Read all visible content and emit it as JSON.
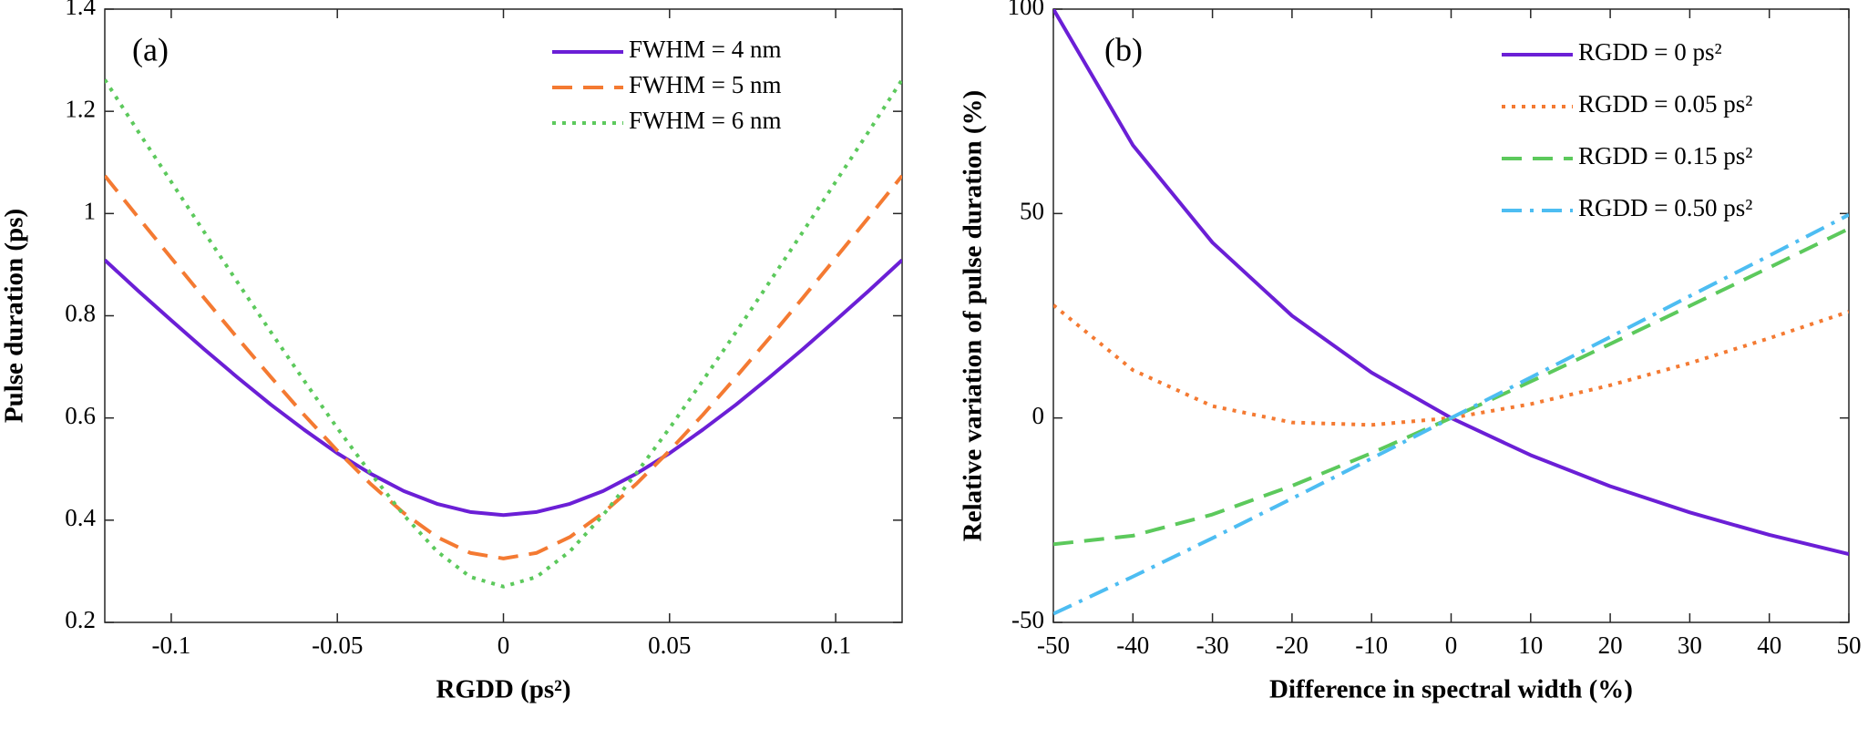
{
  "chart_data": [
    {
      "type": "line",
      "panel_label": "(a)",
      "x_label": "RGDD (ps²)",
      "y_label": "Pulse duration (ps)",
      "x": [
        -0.12,
        -0.11,
        -0.1,
        -0.09,
        -0.08,
        -0.07,
        -0.06,
        -0.05,
        -0.04,
        -0.03,
        -0.02,
        -0.01,
        0,
        0.01,
        0.02,
        0.03,
        0.04,
        0.05,
        0.06,
        0.07,
        0.08,
        0.09,
        0.1,
        0.11,
        0.12
      ],
      "xlim": [
        -0.12,
        0.12
      ],
      "xticks": [
        -0.1,
        -0.05,
        0,
        0.05,
        0.1
      ],
      "ylim": [
        0.2,
        1.4
      ],
      "yticks": [
        0.2,
        0.4,
        0.6,
        0.8,
        1,
        1.2,
        1.4
      ],
      "series": [
        {
          "name": "FWHM = 4 nm",
          "color": "#6b1fd6",
          "style": "solid",
          "values": [
            0.909,
            0.849,
            0.791,
            0.734,
            0.679,
            0.626,
            0.577,
            0.531,
            0.491,
            0.457,
            0.432,
            0.416,
            0.41,
            0.416,
            0.432,
            0.457,
            0.491,
            0.531,
            0.577,
            0.626,
            0.679,
            0.734,
            0.791,
            0.849,
            0.909
          ]
        },
        {
          "name": "FWHM = 5 nm",
          "color": "#f47a32",
          "style": "dashed",
          "values": [
            1.074,
            0.993,
            0.913,
            0.834,
            0.756,
            0.68,
            0.606,
            0.536,
            0.471,
            0.414,
            0.367,
            0.336,
            0.325,
            0.336,
            0.367,
            0.414,
            0.471,
            0.536,
            0.606,
            0.68,
            0.756,
            0.834,
            0.913,
            0.993,
            1.074
          ]
        },
        {
          "name": "FWHM = 6 nm",
          "color": "#5cc95c",
          "style": "dotted",
          "values": [
            1.262,
            1.161,
            1.062,
            0.963,
            0.865,
            0.768,
            0.673,
            0.58,
            0.492,
            0.41,
            0.339,
            0.289,
            0.27,
            0.289,
            0.339,
            0.41,
            0.492,
            0.58,
            0.673,
            0.768,
            0.865,
            0.963,
            1.062,
            1.161,
            1.262
          ]
        }
      ]
    },
    {
      "type": "line",
      "panel_label": "(b)",
      "x_label": "Difference in spectral width (%)",
      "y_label": "Relative variation of pulse duration (%)",
      "x": [
        -50,
        -40,
        -30,
        -20,
        -10,
        0,
        10,
        20,
        30,
        40,
        50
      ],
      "xlim": [
        -50,
        50
      ],
      "xticks": [
        -50,
        -40,
        -30,
        -20,
        -10,
        0,
        10,
        20,
        30,
        40,
        50
      ],
      "ylim": [
        -50,
        100
      ],
      "yticks": [
        -50,
        0,
        50,
        100
      ],
      "series": [
        {
          "name": "RGDD = 0 ps²",
          "color": "#6b1fd6",
          "style": "solid",
          "values": [
            100,
            66.7,
            42.9,
            25,
            11.1,
            0,
            -9.1,
            -16.7,
            -23.1,
            -28.6,
            -33.3
          ]
        },
        {
          "name": "RGDD = 0.05 ps²",
          "color": "#f47a32",
          "style": "dotted",
          "values": [
            27.6,
            11.7,
            2.9,
            -1.1,
            -1.7,
            0,
            3.4,
            8,
            13.4,
            19.5,
            26
          ]
        },
        {
          "name": "RGDD = 0.15 ps²",
          "color": "#5cc95c",
          "style": "dashed",
          "values": [
            -30.9,
            -28.8,
            -23.6,
            -16.6,
            -8.6,
            0,
            8.9,
            18.1,
            27.4,
            36.8,
            46.3
          ]
        },
        {
          "name": "RGDD = 0.50 ps²",
          "color": "#4dbdf2",
          "style": "dashdot",
          "values": [
            -47.9,
            -38.8,
            -29.4,
            -19.7,
            -9.9,
            0,
            9.9,
            19.8,
            29.8,
            39.7,
            49.7
          ]
        }
      ]
    }
  ]
}
